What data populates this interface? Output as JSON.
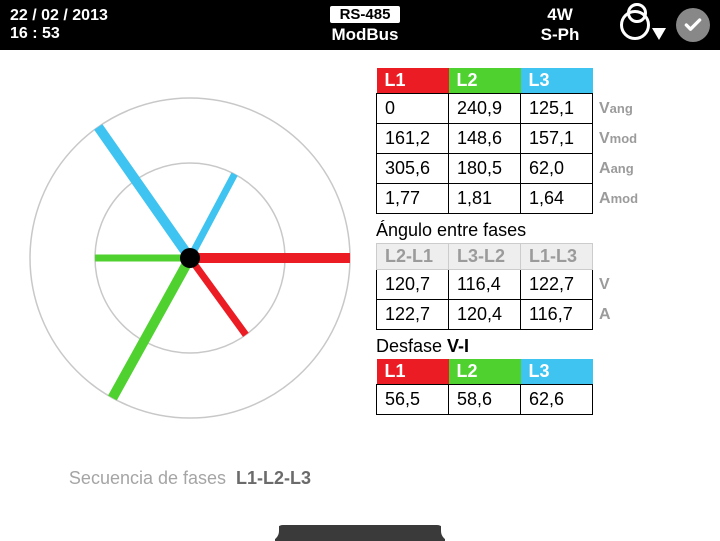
{
  "header": {
    "date": "22 / 02 / 2013",
    "time": "16 : 53",
    "badge": "RS-485",
    "protocol": "ModBus",
    "wiring_top": "4W",
    "wiring_bottom": "S-Ph"
  },
  "colors": {
    "L1": "#ec1c24",
    "L2": "#4fd12f",
    "L3": "#3fc3f0",
    "ring": "#c8c8c8",
    "center": "#000000"
  },
  "phasor": {
    "outer_r": 160,
    "inner_r": 95,
    "line_w_outer": 10,
    "line_w_inner": 7,
    "vectors_outer": [
      {
        "key": "L1",
        "angle": 0
      },
      {
        "key": "L2",
        "angle": 241
      },
      {
        "key": "L3",
        "angle": 125
      }
    ],
    "vectors_inner": [
      {
        "key": "L1",
        "angle": 306
      },
      {
        "key": "L2",
        "angle": 180
      },
      {
        "key": "L3",
        "angle": 62
      }
    ]
  },
  "sequence": {
    "label": "Secuencia de fases",
    "value": "L1-L2-L3"
  },
  "table1": {
    "headers": [
      "L1",
      "L2",
      "L3"
    ],
    "rows": [
      {
        "cells": [
          "0",
          "240,9",
          "125,1"
        ],
        "unit_main": "V",
        "unit_sub": "ang"
      },
      {
        "cells": [
          "161,2",
          "148,6",
          "157,1"
        ],
        "unit_main": "V",
        "unit_sub": "mod"
      },
      {
        "cells": [
          "305,6",
          "180,5",
          "62,0"
        ],
        "unit_main": "A",
        "unit_sub": "ang"
      },
      {
        "cells": [
          "1,77",
          "1,81",
          "1,64"
        ],
        "unit_main": "A",
        "unit_sub": "mod"
      }
    ]
  },
  "section2": {
    "title": "Ángulo entre fases",
    "headers": [
      "L2-L1",
      "L3-L2",
      "L1-L3"
    ],
    "rows": [
      {
        "cells": [
          "120,7",
          "116,4",
          "122,7"
        ],
        "unit": "V"
      },
      {
        "cells": [
          "122,7",
          "120,4",
          "116,7"
        ],
        "unit": "A"
      }
    ]
  },
  "section3": {
    "title_a": "Desfase ",
    "title_b": "V-I",
    "headers": [
      "L1",
      "L2",
      "L3"
    ],
    "row": {
      "cells": [
        "56,5",
        "58,6",
        "62,6"
      ]
    }
  }
}
